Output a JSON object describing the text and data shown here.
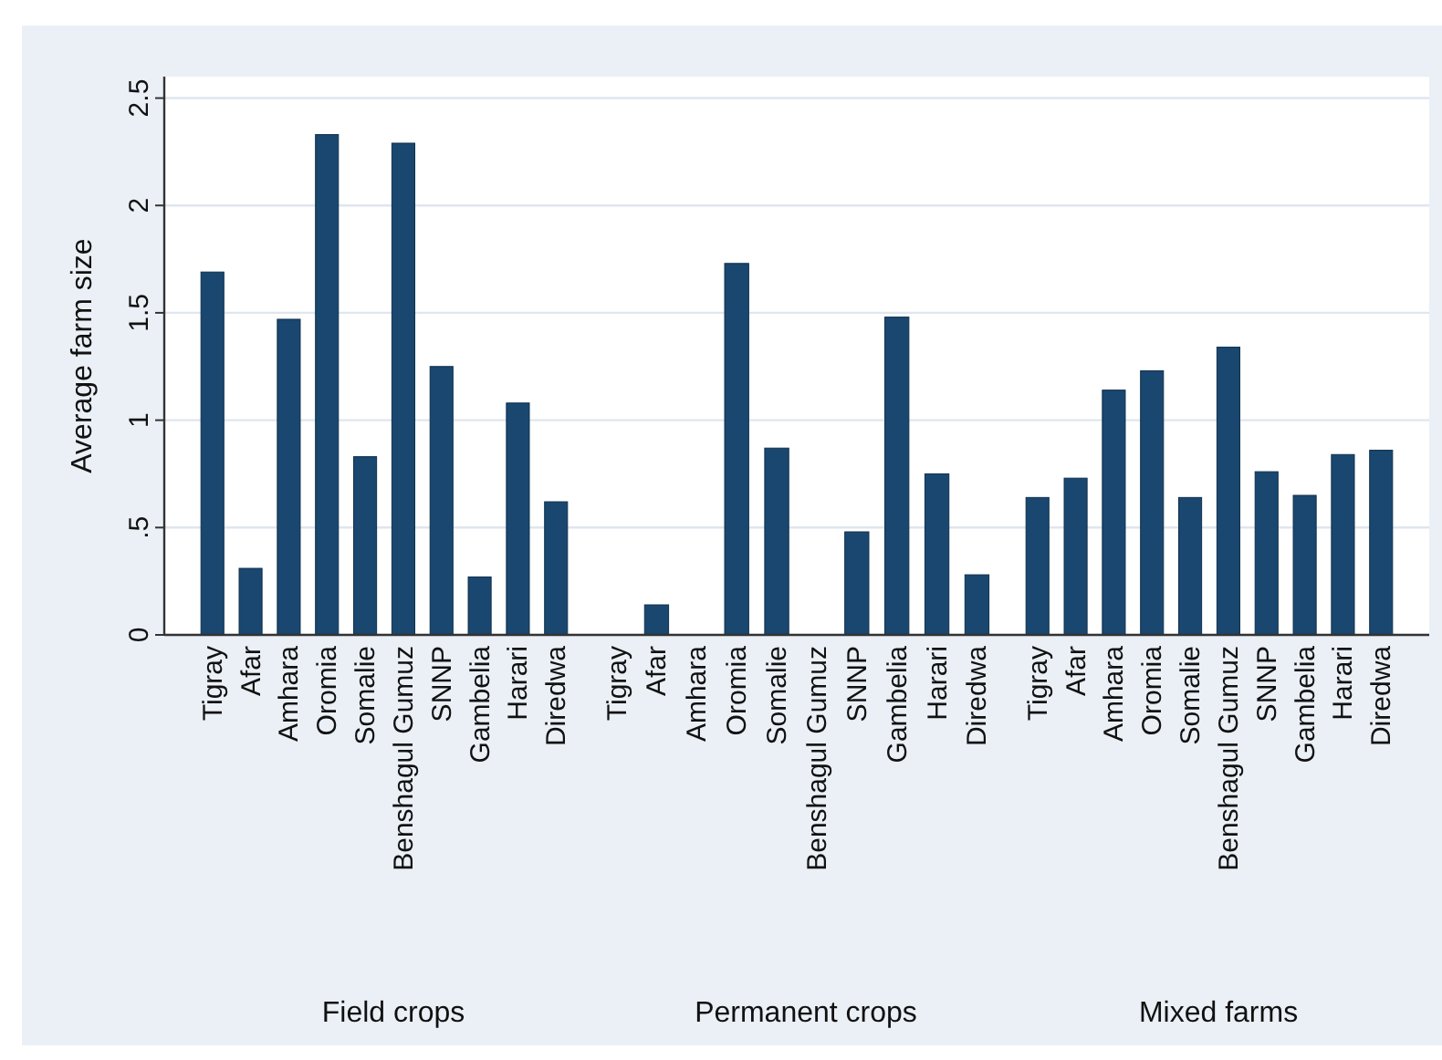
{
  "chart_data": [
    {
      "type": "bar",
      "xlabel": "Field crops",
      "ylabel": "Average farm size",
      "categories": [
        "Tigray",
        "Afar",
        "Amhara",
        "Oromia",
        "Somalie",
        "Benshagul Gumuz",
        "SNNP",
        "Gambelia",
        "Harari",
        "Diredwa"
      ],
      "values": [
        1.69,
        0.31,
        1.47,
        2.33,
        0.83,
        2.29,
        1.25,
        0.27,
        1.08,
        0.62
      ],
      "color": "#1a476f",
      "ylim": [
        0,
        2.6
      ],
      "yticks": [
        0,
        {
          "value": 0.5,
          "label": ".5"
        },
        1,
        1.5,
        2,
        2.5
      ],
      "grid": "y"
    },
    {
      "type": "bar",
      "xlabel": "Permanent crops",
      "categories": [
        "Tigray",
        "Afar",
        "Amhara",
        "Oromia",
        "Somalie",
        "Benshagul Gumuz",
        "SNNP",
        "Gambelia",
        "Harari",
        "Diredwa"
      ],
      "values": [
        null,
        0.14,
        null,
        1.73,
        0.87,
        null,
        0.48,
        1.48,
        0.75,
        0.28
      ],
      "color": "#1a476f",
      "ylim": [
        0,
        2.6
      ],
      "tick_labels": "x"
    },
    {
      "type": "bar",
      "xlabel": "Mixed farms",
      "categories": [
        "Tigray",
        "Afar",
        "Amhara",
        "Oromia",
        "Somalie",
        "Benshagul Gumuz",
        "SNNP",
        "Gambelia",
        "Harari",
        "Diredwa"
      ],
      "values": [
        0.64,
        0.73,
        1.14,
        1.23,
        0.64,
        1.34,
        0.76,
        0.65,
        0.84,
        0.86
      ],
      "color": "#1a476f",
      "ylim": [
        0,
        2.6
      ],
      "tick_labels": "x"
    }
  ]
}
